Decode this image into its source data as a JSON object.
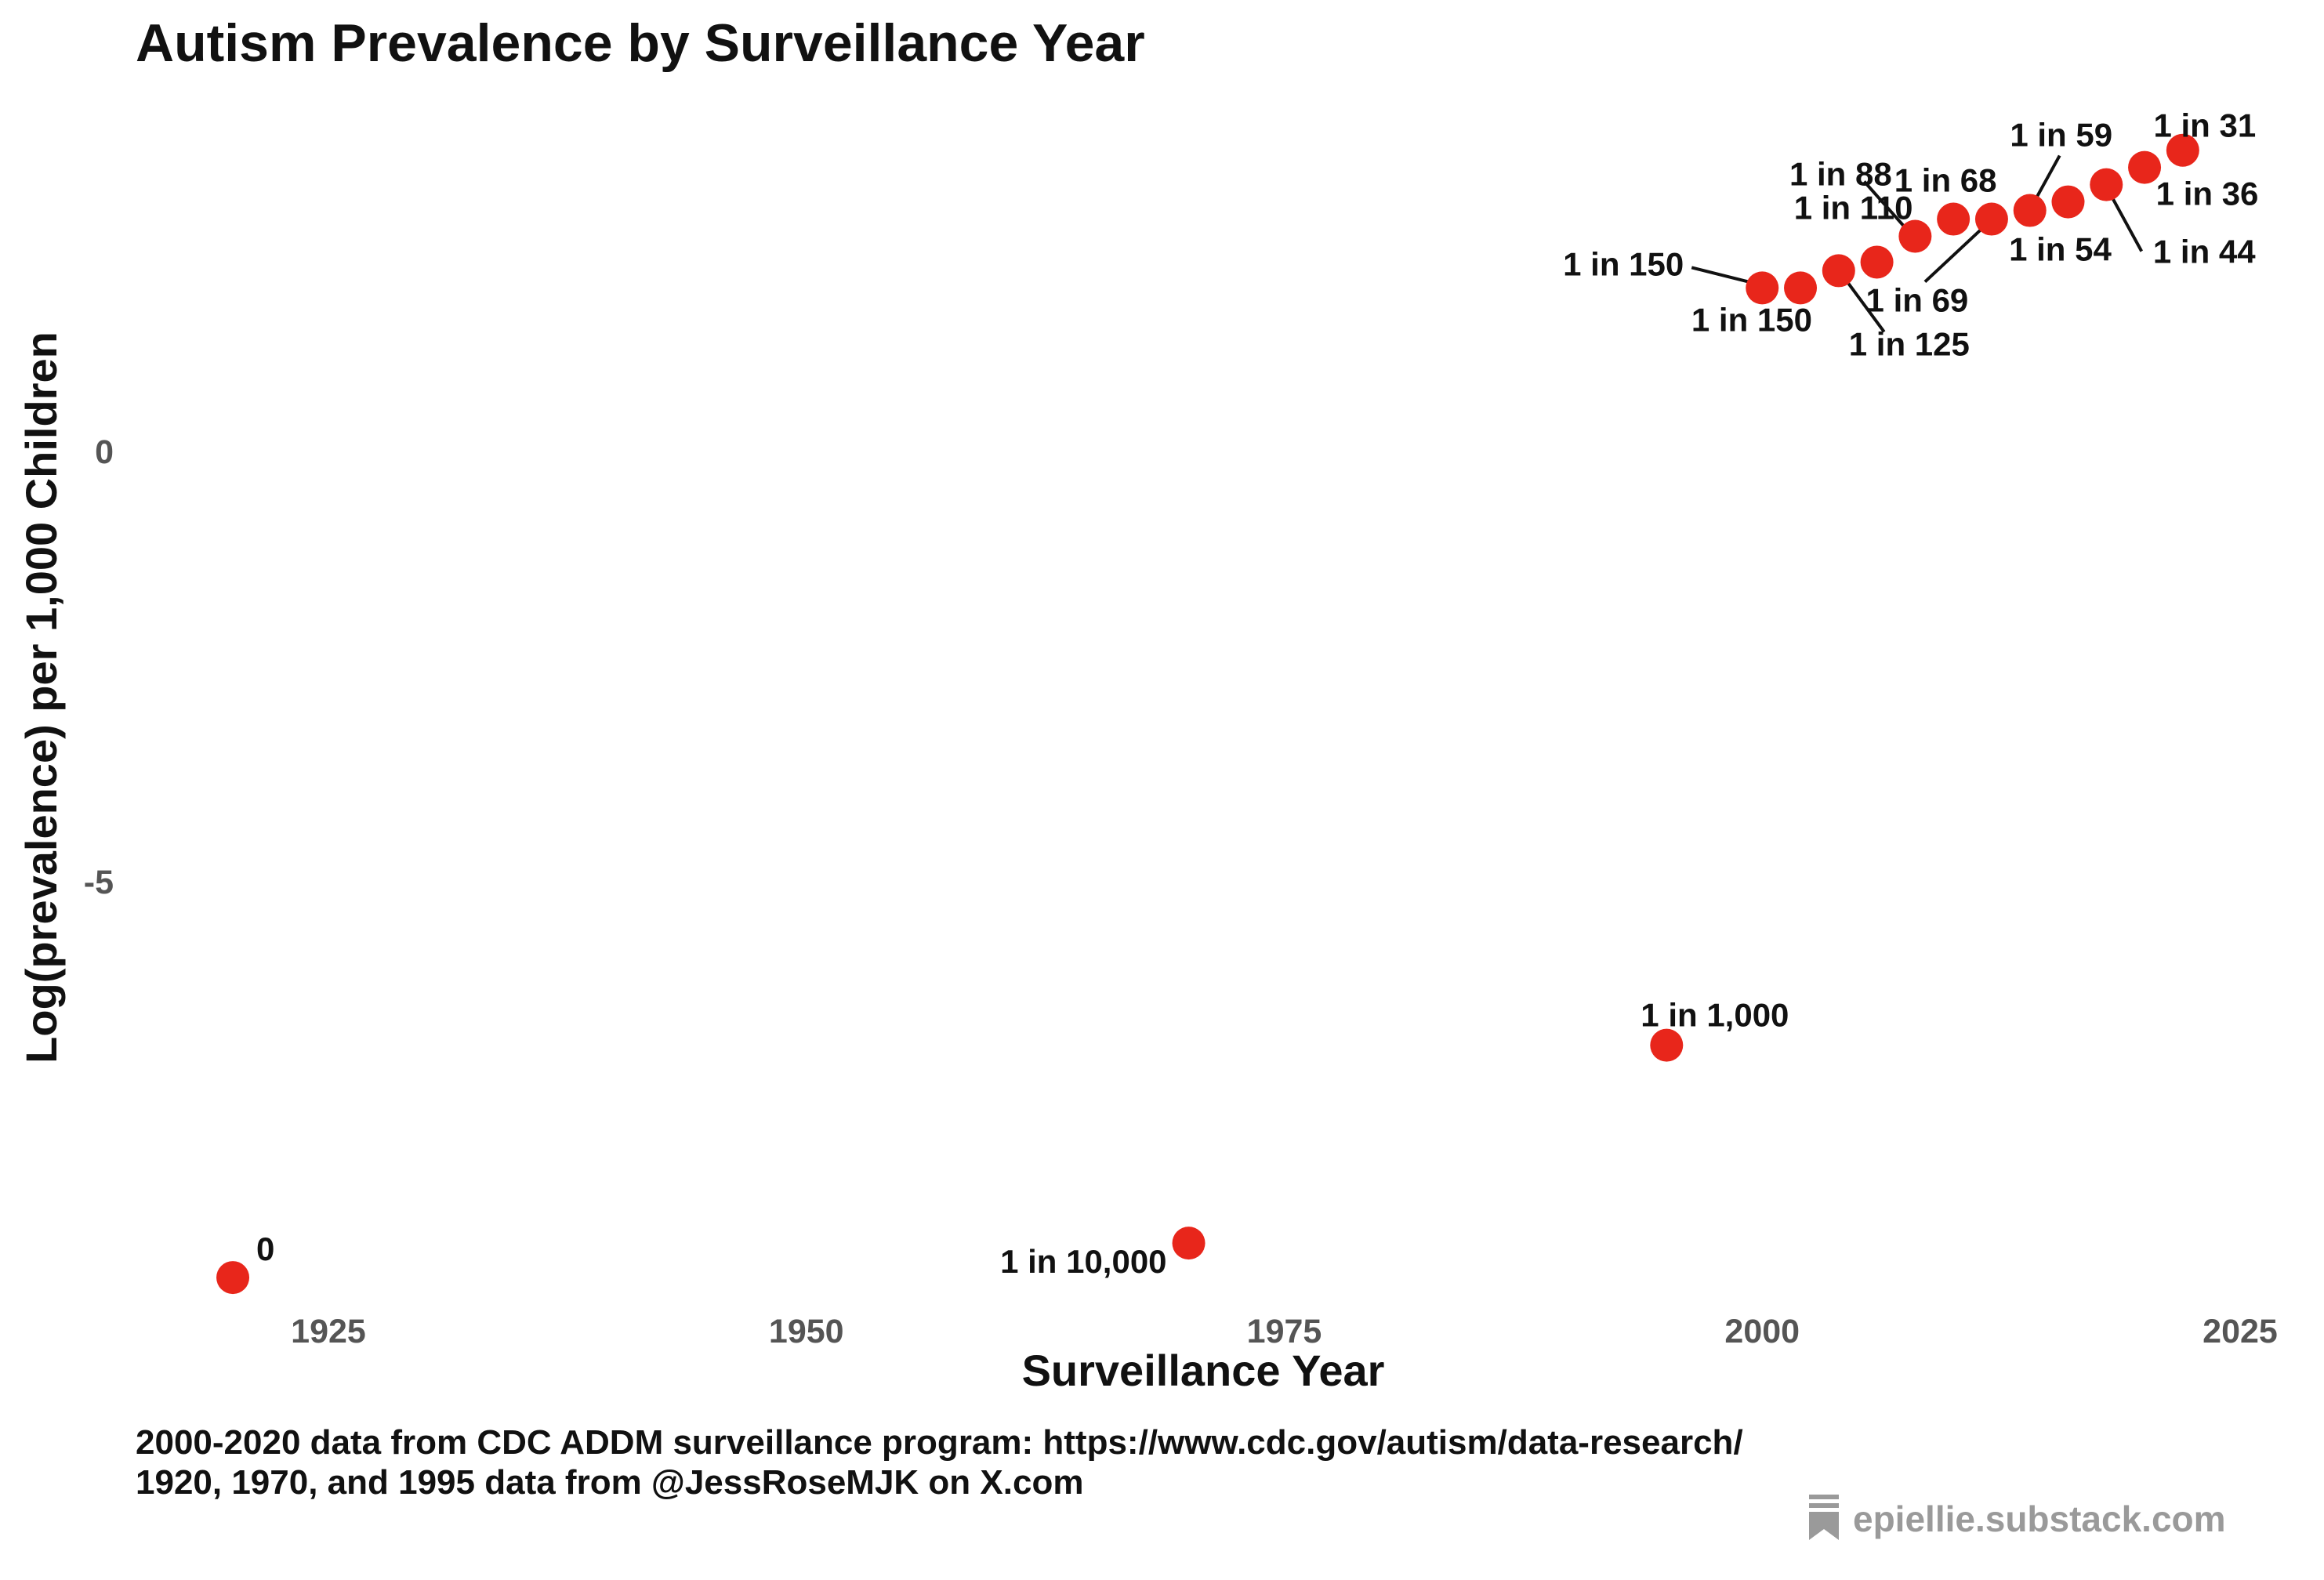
{
  "chart_data": {
    "type": "scatter",
    "title": "Autism Prevalence by Surveillance Year",
    "xlabel": "Surveillance Year",
    "ylabel": "Log(prevalence) per 1,000 Children",
    "xlim": [
      1915,
      2027
    ],
    "ylim": [
      -9.6,
      3.8
    ],
    "x_ticks": [
      1925,
      1950,
      1975,
      2000,
      2025
    ],
    "y_ticks": [
      0,
      -5
    ],
    "grid": false,
    "point_color": "#e8261b",
    "points": [
      {
        "x": 1920,
        "y": -9.6,
        "label": "0"
      },
      {
        "x": 1970,
        "y": -9.2,
        "label": "1 in 10,000"
      },
      {
        "x": 1995,
        "y": -6.9,
        "label": "1 in 1,000"
      },
      {
        "x": 2000,
        "y": 1.9,
        "label": "1 in 150"
      },
      {
        "x": 2002,
        "y": 1.9,
        "label": "1 in 150"
      },
      {
        "x": 2004,
        "y": 2.1,
        "label": "1 in 125"
      },
      {
        "x": 2006,
        "y": 2.2,
        "label": "1 in 110"
      },
      {
        "x": 2008,
        "y": 2.5,
        "label": "1 in 88"
      },
      {
        "x": 2010,
        "y": 2.7,
        "label": "1 in 68"
      },
      {
        "x": 2012,
        "y": 2.7,
        "label": "1 in 69"
      },
      {
        "x": 2014,
        "y": 2.8,
        "label": "1 in 59"
      },
      {
        "x": 2016,
        "y": 2.9,
        "label": "1 in 54"
      },
      {
        "x": 2018,
        "y": 3.1,
        "label": "1 in 44"
      },
      {
        "x": 2020,
        "y": 3.3,
        "label": "1 in 36"
      },
      {
        "x": 2022,
        "y": 3.5,
        "label": "1 in 31"
      }
    ]
  },
  "caption": {
    "line1": "2000-2020 data from CDC ADDM surveillance program: https://www.cdc.gov/autism/data-research/",
    "line2": "1920, 1970, and 1995 data from @JessRoseMJK on X.com"
  },
  "watermark": {
    "text": "epiellie.substack.com",
    "icon": "bookmark-icon"
  }
}
